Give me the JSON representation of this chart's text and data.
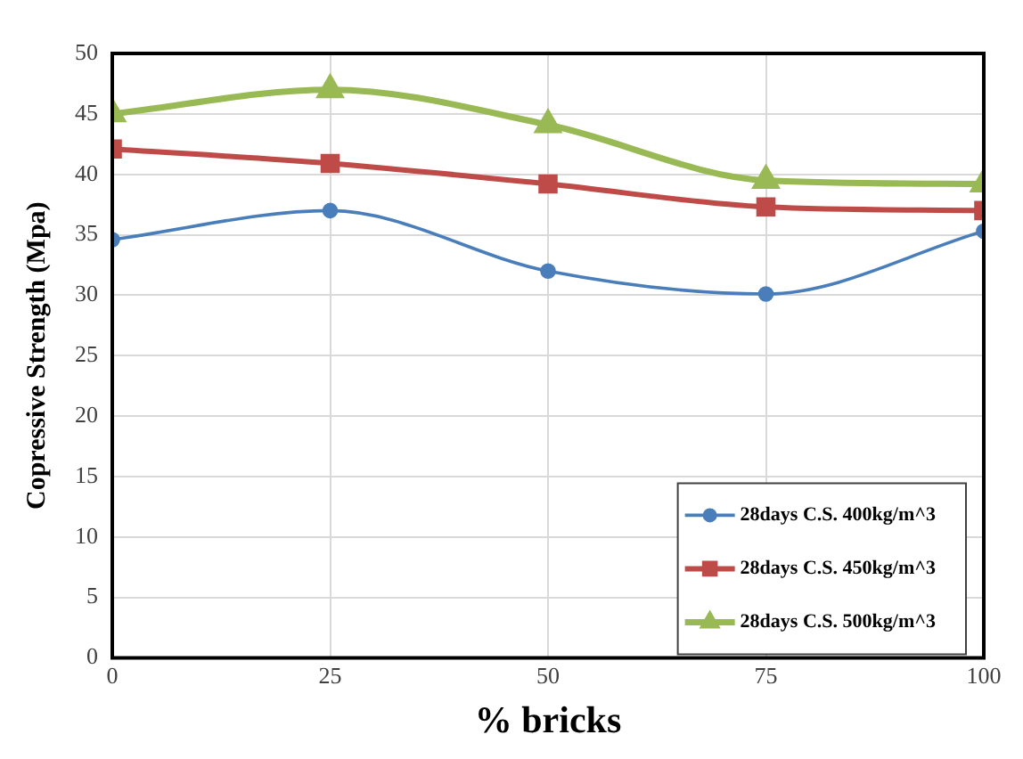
{
  "chart_data": {
    "type": "line",
    "xlabel": "% bricks",
    "ylabel": "Copressive Strength (Mpa)",
    "x": [
      0,
      25,
      50,
      75,
      100
    ],
    "xlim": [
      0,
      100
    ],
    "xticks": [
      0,
      25,
      50,
      75,
      100
    ],
    "ylim": [
      0,
      50
    ],
    "yticks": [
      0,
      5,
      10,
      15,
      20,
      25,
      30,
      35,
      40,
      45,
      50
    ],
    "series": [
      {
        "name": "28days C.S. 400kg/m^3",
        "color": "#4a7ebb",
        "marker": "circle",
        "values": [
          34.6,
          37,
          32,
          30.1,
          35.3
        ]
      },
      {
        "name": "28days C.S. 450kg/m^3",
        "color": "#be4b48",
        "marker": "square",
        "values": [
          42.1,
          40.9,
          39.2,
          37.3,
          37
        ]
      },
      {
        "name": "28days C.S. 500kg/m^3",
        "color": "#98b954",
        "marker": "triangle",
        "values": [
          45,
          47,
          44.1,
          39.5,
          39.2
        ]
      }
    ],
    "grid": true,
    "legend": "bottom right"
  }
}
